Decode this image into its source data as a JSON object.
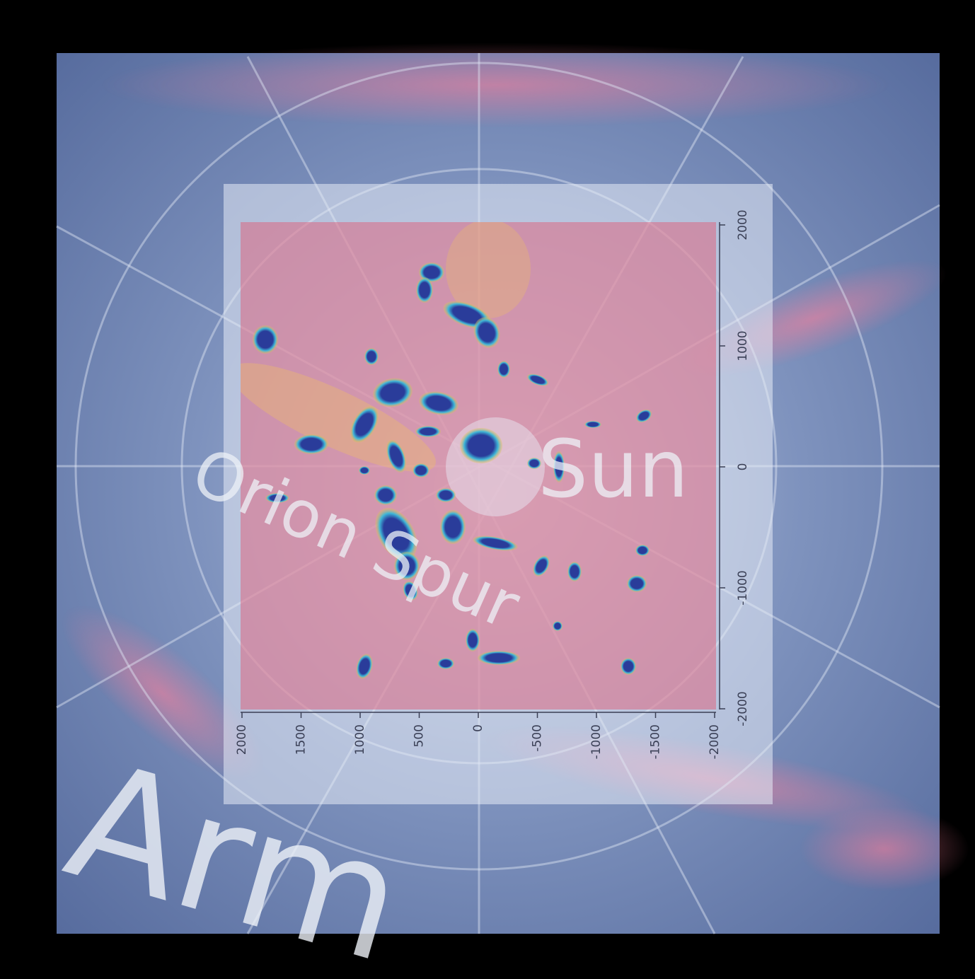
{
  "chart_data": {
    "type": "map",
    "annotations": [
      "Sun",
      "Orion Spur",
      "Arm"
    ],
    "xlim": [
      2000,
      -2000
    ],
    "ylim": [
      -2000,
      2000
    ],
    "xticks": [
      2000,
      1500,
      1000,
      500,
      0,
      -500,
      -1000,
      -1500,
      -2000
    ],
    "yticks": [
      2000,
      1000,
      0,
      -1000,
      -2000
    ]
  }
}
